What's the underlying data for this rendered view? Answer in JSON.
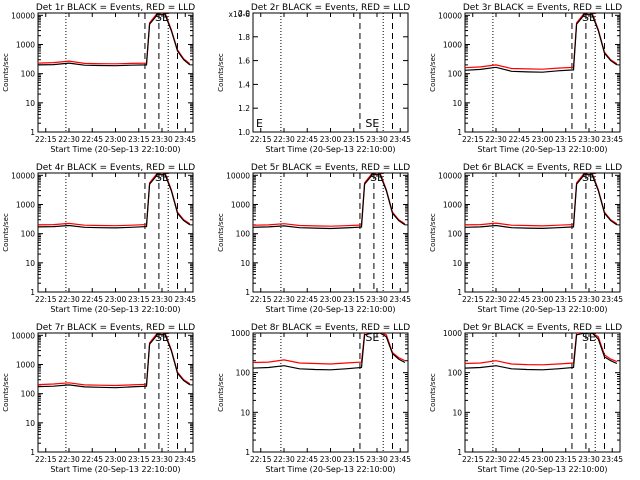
{
  "figure": {
    "background": "#ffffff"
  },
  "chart_data": [
    {
      "type": "line",
      "panel": "1",
      "title": "Det 1r BLACK = Events, RED = LLD",
      "xlabel": "Start Time (20-Sep-13 22:10:00)",
      "ylabel": "Counts/sec",
      "xtick_labels": [
        "22:15",
        "22:30",
        "22:45",
        "23:00",
        "23:15",
        "23:30",
        "23:45"
      ],
      "ytick_labels": [
        "1",
        "10",
        "100",
        "1000",
        "10000"
      ],
      "ylim": [
        1,
        12000
      ],
      "yscale": "log",
      "grid": false,
      "legend": "none",
      "x": [
        "22:10",
        "22:20",
        "22:30",
        "22:40",
        "22:50",
        "23:00",
        "23:10",
        "23:20",
        "23:22",
        "23:27",
        "23:32",
        "23:36",
        "23:40",
        "23:44",
        "23:48"
      ],
      "series": [
        {
          "name": "Events",
          "color": "#000000",
          "values": [
            200,
            205,
            230,
            195,
            190,
            188,
            195,
            200,
            5000,
            10500,
            10500,
            3000,
            600,
            300,
            200
          ]
        },
        {
          "name": "LLD",
          "color": "#ff0000",
          "values": [
            230,
            240,
            270,
            225,
            220,
            218,
            225,
            230,
            5500,
            12000,
            12000,
            3200,
            650,
            320,
            220
          ]
        }
      ],
      "dashed_lines_at": [
        "23:19",
        "23:28",
        "23:40"
      ],
      "dotted_lines_at": [
        "22:28",
        "23:34"
      ],
      "annotation": {
        "text": "SE",
        "at": "23:30"
      }
    },
    {
      "type": "line",
      "panel": "2",
      "title": "Det 2r BLACK = Events, RED = LLD",
      "xlabel": "Start Time (20-Sep-13 22:10:00)",
      "ylabel": "Counts/sec",
      "xtick_labels": [
        "22:15",
        "22:30",
        "22:45",
        "23:00",
        "23:15",
        "23:30",
        "23:45"
      ],
      "ytick_labels": [
        "1.0",
        "1.2",
        "1.4",
        "1.6",
        "1.8",
        "2.0"
      ],
      "ytick_exp": "x10-6",
      "ylim": [
        1.0,
        2.0
      ],
      "grid": false,
      "legend": "none",
      "series": [],
      "dashed_lines_at": [
        "23:19",
        "23:40"
      ],
      "dotted_lines_at": [
        "22:28",
        "23:34"
      ],
      "annotation": {
        "text": "SE",
        "at": "23:27"
      },
      "corner_mark": "E"
    },
    {
      "type": "line",
      "panel": "3",
      "title": "Det 3r BLACK = Events, RED = LLD",
      "xlabel": "Start Time (20-Sep-13 22:10:00)",
      "ylabel": "Counts/sec",
      "xtick_labels": [
        "22:15",
        "22:30",
        "22:45",
        "23:00",
        "23:15",
        "23:30",
        "23:45"
      ],
      "ytick_labels": [
        "1",
        "10",
        "100",
        "1000",
        "10000"
      ],
      "ylim": [
        1,
        12000
      ],
      "yscale": "log",
      "grid": false,
      "legend": "none",
      "x": [
        "22:10",
        "22:20",
        "22:30",
        "22:40",
        "22:50",
        "23:00",
        "23:10",
        "23:20",
        "23:22",
        "23:27",
        "23:32",
        "23:36",
        "23:40",
        "23:44",
        "23:48"
      ],
      "series": [
        {
          "name": "Events",
          "color": "#000000",
          "values": [
            130,
            140,
            165,
            120,
            115,
            112,
            125,
            135,
            5000,
            10500,
            10500,
            3000,
            500,
            280,
            200
          ]
        },
        {
          "name": "LLD",
          "color": "#ff0000",
          "values": [
            160,
            170,
            200,
            150,
            145,
            142,
            155,
            165,
            5500,
            12000,
            12000,
            3200,
            550,
            300,
            220
          ]
        }
      ],
      "dashed_lines_at": [
        "23:19",
        "23:28",
        "23:40"
      ],
      "dotted_lines_at": [
        "22:28",
        "23:34"
      ],
      "annotation": {
        "text": "SE",
        "at": "23:30"
      }
    },
    {
      "type": "line",
      "panel": "4",
      "title": "Det 4r BLACK = Events, RED = LLD",
      "xlabel": "Start Time (20-Sep-13 22:10:00)",
      "ylabel": "Counts/sec",
      "xtick_labels": [
        "22:15",
        "22:30",
        "22:45",
        "23:00",
        "23:15",
        "23:30",
        "23:45"
      ],
      "ytick_labels": [
        "1",
        "10",
        "100",
        "1000",
        "10000"
      ],
      "ylim": [
        1,
        12000
      ],
      "yscale": "log",
      "grid": false,
      "legend": "none",
      "x": [
        "22:10",
        "22:20",
        "22:30",
        "22:40",
        "22:50",
        "23:00",
        "23:10",
        "23:20",
        "23:22",
        "23:27",
        "23:32",
        "23:36",
        "23:40",
        "23:44",
        "23:48"
      ],
      "series": [
        {
          "name": "Events",
          "color": "#000000",
          "values": [
            170,
            175,
            190,
            165,
            160,
            158,
            165,
            175,
            5000,
            10500,
            10500,
            3000,
            500,
            280,
            200
          ]
        },
        {
          "name": "LLD",
          "color": "#ff0000",
          "values": [
            200,
            205,
            225,
            195,
            190,
            188,
            195,
            205,
            5500,
            12000,
            12000,
            3200,
            550,
            300,
            220
          ]
        }
      ],
      "dashed_lines_at": [
        "23:19",
        "23:28",
        "23:40"
      ],
      "dotted_lines_at": [
        "22:28",
        "23:34"
      ],
      "annotation": {
        "text": "SE",
        "at": "23:30"
      }
    },
    {
      "type": "line",
      "panel": "5",
      "title": "Det 5r BLACK = Events, RED = LLD",
      "xlabel": "Start Time (20-Sep-13 22:10:00)",
      "ylabel": "Counts/sec",
      "xtick_labels": [
        "22:15",
        "22:30",
        "22:45",
        "23:00",
        "23:15",
        "23:30",
        "23:45"
      ],
      "ytick_labels": [
        "1",
        "10",
        "100",
        "1000",
        "10000"
      ],
      "ylim": [
        1,
        12000
      ],
      "yscale": "log",
      "grid": false,
      "legend": "none",
      "x": [
        "22:10",
        "22:20",
        "22:30",
        "22:40",
        "22:50",
        "23:00",
        "23:10",
        "23:20",
        "23:22",
        "23:27",
        "23:32",
        "23:36",
        "23:40",
        "23:44",
        "23:48"
      ],
      "series": [
        {
          "name": "Events",
          "color": "#000000",
          "values": [
            165,
            170,
            185,
            160,
            155,
            150,
            158,
            168,
            5000,
            10500,
            10500,
            3000,
            500,
            280,
            200
          ]
        },
        {
          "name": "LLD",
          "color": "#ff0000",
          "values": [
            195,
            200,
            220,
            190,
            185,
            180,
            188,
            198,
            5500,
            12000,
            12000,
            3200,
            550,
            300,
            220
          ]
        }
      ],
      "dashed_lines_at": [
        "23:19",
        "23:28",
        "23:40"
      ],
      "dotted_lines_at": [
        "22:28",
        "23:34"
      ],
      "annotation": {
        "text": "SE",
        "at": "23:30"
      }
    },
    {
      "type": "line",
      "panel": "6",
      "title": "Det 6r BLACK = Events, RED = LLD",
      "xlabel": "Start Time (20-Sep-13 22:10:00)",
      "ylabel": "Counts/sec",
      "xtick_labels": [
        "22:15",
        "22:30",
        "22:45",
        "23:00",
        "23:15",
        "23:30",
        "23:45"
      ],
      "ytick_labels": [
        "1",
        "10",
        "100",
        "1000",
        "10000"
      ],
      "ylim": [
        1,
        12000
      ],
      "yscale": "log",
      "grid": false,
      "legend": "none",
      "x": [
        "22:10",
        "22:20",
        "22:30",
        "22:40",
        "22:50",
        "23:00",
        "23:10",
        "23:20",
        "23:22",
        "23:27",
        "23:32",
        "23:36",
        "23:40",
        "23:44",
        "23:48"
      ],
      "series": [
        {
          "name": "Events",
          "color": "#000000",
          "values": [
            165,
            170,
            190,
            160,
            155,
            152,
            160,
            170,
            5000,
            10500,
            10500,
            3000,
            500,
            280,
            200
          ]
        },
        {
          "name": "LLD",
          "color": "#ff0000",
          "values": [
            200,
            205,
            230,
            195,
            190,
            185,
            195,
            205,
            5500,
            12000,
            12000,
            3200,
            550,
            300,
            220
          ]
        }
      ],
      "dashed_lines_at": [
        "23:19",
        "23:28",
        "23:40"
      ],
      "dotted_lines_at": [
        "22:28",
        "23:34"
      ],
      "annotation": {
        "text": "SE",
        "at": "23:30"
      }
    },
    {
      "type": "line",
      "panel": "7",
      "title": "Det 7r BLACK = Events, RED = LLD",
      "xlabel": "Start Time (20-Sep-13 22:10:00)",
      "ylabel": "Counts/sec",
      "xtick_labels": [
        "22:15",
        "22:30",
        "22:45",
        "23:00",
        "23:15",
        "23:30",
        "23:45"
      ],
      "ytick_labels": [
        "1",
        "10",
        "100",
        "1000",
        "10000"
      ],
      "ylim": [
        1,
        12000
      ],
      "yscale": "log",
      "grid": false,
      "legend": "none",
      "x": [
        "22:10",
        "22:20",
        "22:30",
        "22:40",
        "22:50",
        "23:00",
        "23:10",
        "23:20",
        "23:22",
        "23:27",
        "23:32",
        "23:36",
        "23:40",
        "23:44",
        "23:48"
      ],
      "series": [
        {
          "name": "Events",
          "color": "#000000",
          "values": [
            175,
            180,
            200,
            170,
            165,
            160,
            170,
            180,
            5000,
            10500,
            10500,
            3000,
            500,
            280,
            200
          ]
        },
        {
          "name": "LLD",
          "color": "#ff0000",
          "values": [
            205,
            215,
            235,
            200,
            195,
            190,
            200,
            210,
            5500,
            12000,
            12000,
            3200,
            550,
            300,
            220
          ]
        }
      ],
      "dashed_lines_at": [
        "23:19",
        "23:28",
        "23:40"
      ],
      "dotted_lines_at": [
        "22:28",
        "23:34"
      ],
      "annotation": {
        "text": "SE",
        "at": "23:30"
      }
    },
    {
      "type": "line",
      "panel": "8",
      "title": "Det 8r BLACK = Events, RED = LLD",
      "xlabel": "Start Time (20-Sep-13 22:10:00)",
      "ylabel": "Counts/sec",
      "xtick_labels": [
        "22:15",
        "22:30",
        "22:45",
        "23:00",
        "23:15",
        "23:30",
        "23:45"
      ],
      "ytick_labels": [
        "1",
        "10",
        "100",
        "1000"
      ],
      "ylim": [
        1,
        1000
      ],
      "yscale": "log",
      "grid": false,
      "legend": "none",
      "x": [
        "22:10",
        "22:20",
        "22:30",
        "22:40",
        "22:50",
        "23:00",
        "23:10",
        "23:20",
        "23:22",
        "23:27",
        "23:32",
        "23:36",
        "23:40",
        "23:44",
        "23:48"
      ],
      "series": [
        {
          "name": "Events",
          "color": "#000000",
          "values": [
            130,
            135,
            150,
            125,
            120,
            118,
            125,
            135,
            900,
            1000,
            1000,
            800,
            300,
            220,
            180
          ]
        },
        {
          "name": "LLD",
          "color": "#ff0000",
          "values": [
            180,
            185,
            210,
            175,
            170,
            165,
            175,
            185,
            1000,
            1000,
            1000,
            900,
            320,
            240,
            200
          ]
        }
      ],
      "dashed_lines_at": [
        "23:19",
        "23:40"
      ],
      "dotted_lines_at": [
        "22:28",
        "23:34"
      ],
      "annotation": {
        "text": "SE",
        "at": "23:27"
      }
    },
    {
      "type": "line",
      "panel": "9",
      "title": "Det 9r BLACK = Events, RED = LLD",
      "xlabel": "Start Time (20-Sep-13 22:10:00)",
      "ylabel": "Counts/sec",
      "xtick_labels": [
        "22:15",
        "22:30",
        "22:45",
        "23:00",
        "23:15",
        "23:30",
        "23:45"
      ],
      "ytick_labels": [
        "1",
        "10",
        "100",
        "1000"
      ],
      "ylim": [
        1,
        1000
      ],
      "yscale": "log",
      "grid": false,
      "legend": "none",
      "x": [
        "22:10",
        "22:20",
        "22:30",
        "22:40",
        "22:50",
        "23:00",
        "23:10",
        "23:20",
        "23:22",
        "23:27",
        "23:32",
        "23:36",
        "23:40",
        "23:44",
        "23:48"
      ],
      "series": [
        {
          "name": "Events",
          "color": "#000000",
          "values": [
            130,
            135,
            150,
            125,
            120,
            118,
            125,
            135,
            900,
            1000,
            1000,
            700,
            250,
            200,
            170
          ]
        },
        {
          "name": "LLD",
          "color": "#ff0000",
          "values": [
            170,
            175,
            200,
            165,
            160,
            158,
            165,
            175,
            1000,
            1000,
            1000,
            800,
            280,
            220,
            190
          ]
        }
      ],
      "dashed_lines_at": [
        "23:19",
        "23:28",
        "23:40"
      ],
      "dotted_lines_at": [
        "22:28",
        "23:34"
      ],
      "annotation": {
        "text": "SE",
        "at": "23:30"
      }
    }
  ]
}
